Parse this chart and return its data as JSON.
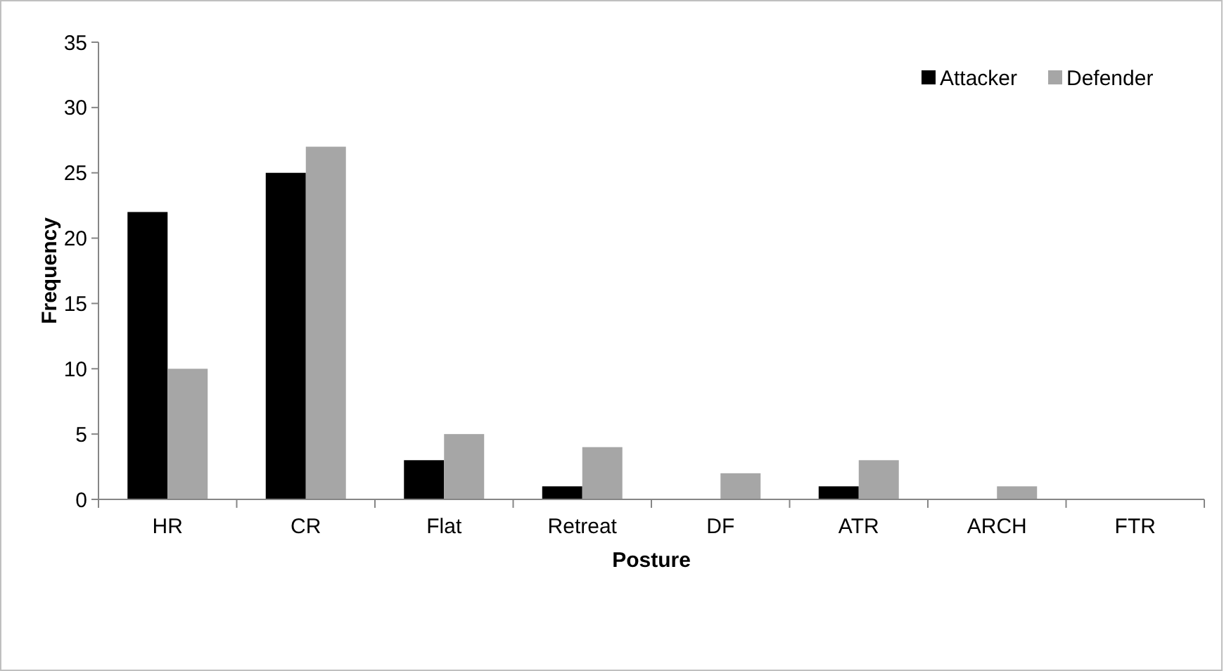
{
  "chart_data": {
    "type": "bar",
    "xlabel": "Posture",
    "ylabel": "Frequency",
    "categories": [
      "HR",
      "CR",
      "Flat",
      "Retreat",
      "DF",
      "ATR",
      "ARCH",
      "FTR"
    ],
    "series": [
      {
        "name": "Attacker",
        "color": "#000000",
        "values": [
          22,
          25,
          3,
          1,
          0,
          1,
          0,
          0
        ]
      },
      {
        "name": "Defender",
        "color": "#a6a6a6",
        "values": [
          10,
          27,
          5,
          4,
          2,
          3,
          1,
          0
        ]
      }
    ],
    "ylim": [
      0,
      35
    ],
    "yticks": [
      0,
      5,
      10,
      15,
      20,
      25,
      30,
      35
    ],
    "grid": false,
    "legend": "top right"
  }
}
